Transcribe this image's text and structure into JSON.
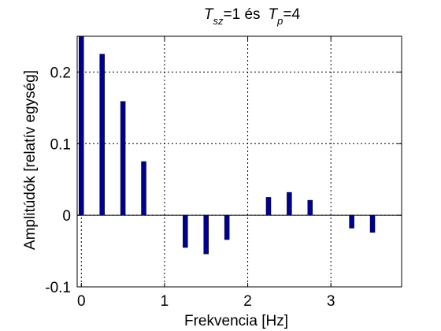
{
  "chart_data": {
    "type": "bar",
    "title": {
      "part1_main": "T",
      "part1_sub": "sz",
      "part2": "=1 és",
      "part3_main": "T",
      "part3_sub": "p",
      "part4": "=4"
    },
    "xlabel": "Frekvencia [Hz]",
    "ylabel": "Amplitúdók [relatív egység]",
    "xlim": [
      -0.05,
      3.85
    ],
    "ylim": [
      -0.1,
      0.25
    ],
    "xticks": [
      0,
      1,
      2,
      3
    ],
    "xtick_labels": [
      "0",
      "1",
      "2",
      "3"
    ],
    "yticks": [
      -0.1,
      0,
      0.1,
      0.2
    ],
    "ytick_labels": [
      "-0.1",
      "0",
      "0.1",
      "0.2"
    ],
    "grid": true,
    "bar_color": "#00008f",
    "series": [
      {
        "x": [
          0,
          0.25,
          0.5,
          0.75,
          1.0,
          1.25,
          1.5,
          1.75,
          2.0,
          2.25,
          2.5,
          2.75,
          3.0,
          3.25,
          3.5
        ],
        "values": [
          0.25,
          0.225,
          0.159,
          0.075,
          0,
          -0.045,
          -0.054,
          -0.034,
          0,
          0.025,
          0.032,
          0.021,
          0,
          -0.018,
          -0.024
        ]
      }
    ]
  }
}
